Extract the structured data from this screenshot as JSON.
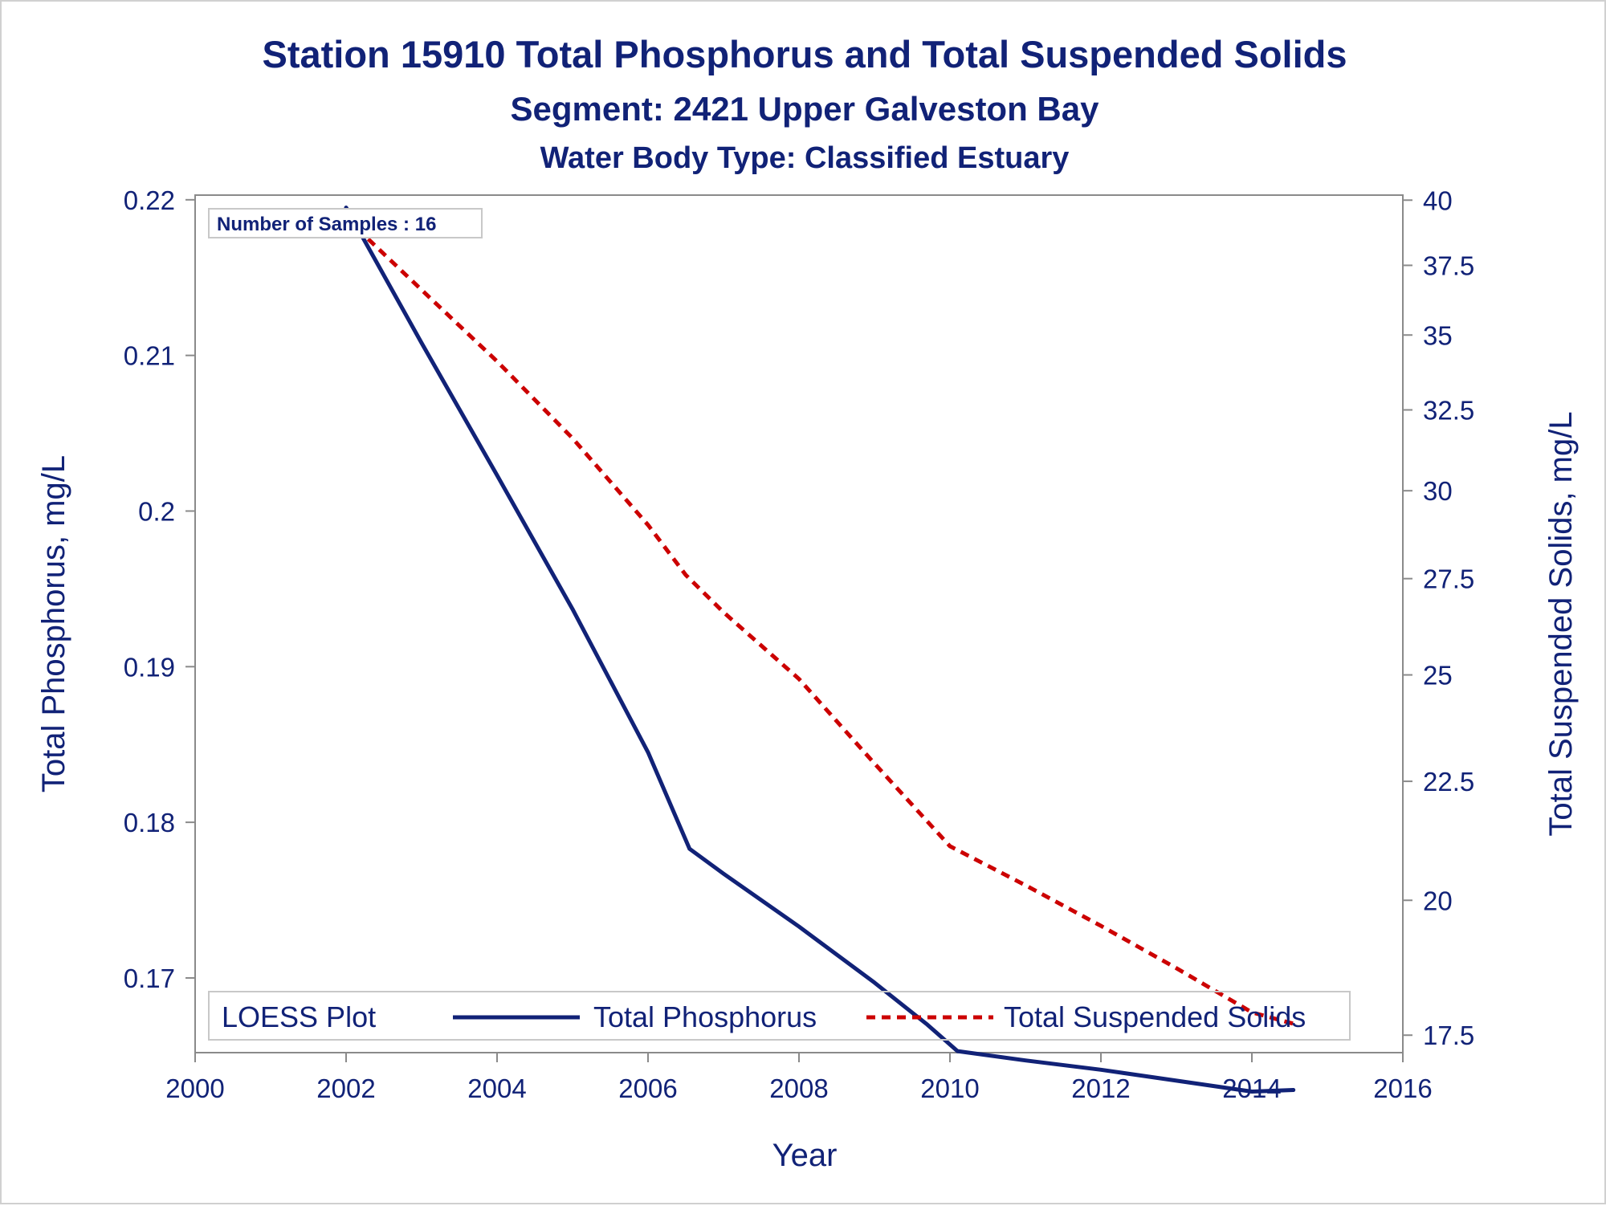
{
  "chart_data": {
    "type": "line",
    "title": "Station 15910  Total Phosphorus and Total Suspended Solids",
    "subtitle": "Segment: 2421  Upper Galveston Bay",
    "subtitle2": "Water Body Type: Classified Estuary",
    "xlabel": "Year",
    "ylabel": "Total Phosphorus, mg/L",
    "y2label": "Total Suspended Solids, mg/L",
    "xlim": [
      2000,
      2016
    ],
    "ylim": [
      0.1652,
      0.2203
    ],
    "y2lim": [
      17.2,
      40.2
    ],
    "y2_scale": "log",
    "x_ticks": [
      2000,
      2002,
      2004,
      2006,
      2008,
      2010,
      2012,
      2014,
      2016
    ],
    "x_tick_labels": [
      "2000",
      "2002",
      "2004",
      "2006",
      "2008",
      "2010",
      "2012",
      "2014",
      "2016"
    ],
    "y_ticks": [
      0.17,
      0.18,
      0.19,
      0.2,
      0.21,
      0.22
    ],
    "y_tick_labels": [
      "0.17",
      "0.18",
      "0.19",
      "0.2",
      "0.21",
      "0.22"
    ],
    "y2_ticks": [
      17.5,
      20,
      22.5,
      25,
      27.5,
      30,
      32.5,
      35,
      37.5,
      40
    ],
    "y2_tick_labels": [
      "17.5",
      "20",
      "22.5",
      "25",
      "27.5",
      "30",
      "32.5",
      "35",
      "37.5",
      "40"
    ],
    "annotation": "Number of Samples : 16",
    "legend": {
      "title": "LOESS Plot",
      "placement": "bottom-inside",
      "entries": [
        "Total Phosphorus",
        "Total Suspended Solids"
      ]
    },
    "grid": false,
    "series": [
      {
        "name": "Total Phosphorus",
        "axis": "left",
        "color": "#112277",
        "style": "solid",
        "x": [
          2002.0,
          2003.0,
          2004.0,
          2005.0,
          2006.0,
          2006.55,
          2007.0,
          2008.0,
          2009.0,
          2009.7,
          2010.1,
          2011.0,
          2012.0,
          2013.0,
          2014.0,
          2014.55
        ],
        "y": [
          0.2195,
          0.2108,
          0.2023,
          0.1937,
          0.1845,
          0.1783,
          0.1767,
          0.1733,
          0.1697,
          0.167,
          0.1653,
          0.1647,
          0.1641,
          0.1634,
          0.1627,
          0.1628
        ]
      },
      {
        "name": "Total Suspended Solids",
        "axis": "right",
        "color": "#cc0000",
        "style": "dashed",
        "x": [
          2002.0,
          2003.0,
          2004.0,
          2005.0,
          2006.0,
          2006.5,
          2007.0,
          2008.0,
          2009.0,
          2010.0,
          2011.0,
          2012.0,
          2013.0,
          2014.0,
          2014.55
        ],
        "y": [
          39.3,
          36.6,
          34.1,
          31.6,
          29.0,
          27.6,
          26.6,
          24.9,
          22.9,
          21.1,
          20.3,
          19.5,
          18.7,
          17.9,
          17.7
        ]
      }
    ]
  }
}
